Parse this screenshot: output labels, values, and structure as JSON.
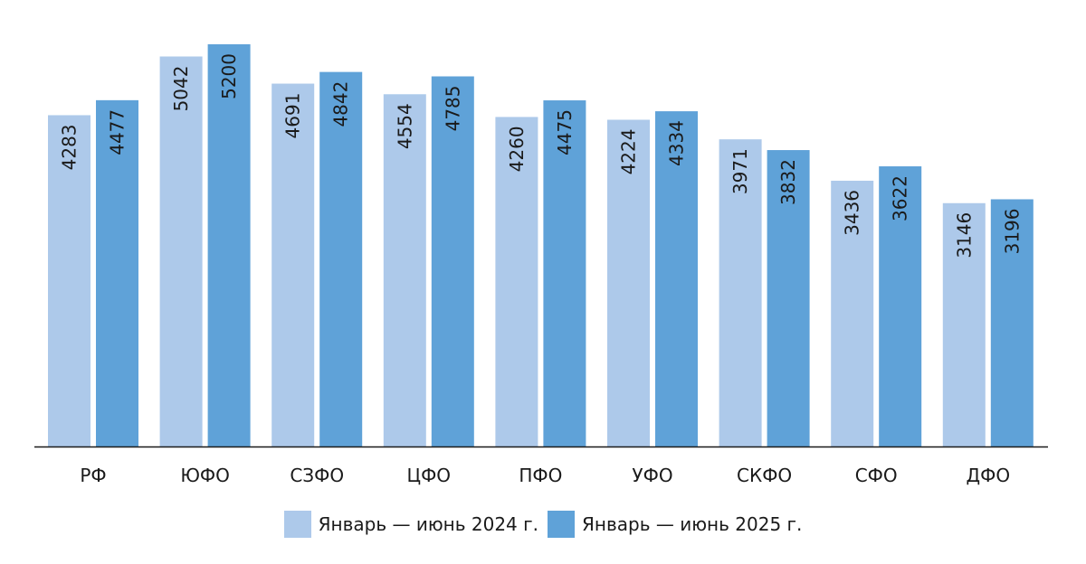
{
  "chart_data": {
    "type": "bar",
    "categories": [
      "РФ",
      "ЮФО",
      "СЗФО",
      "ЦФО",
      "ПФО",
      "УФО",
      "СКФО",
      "СФО",
      "ДФО"
    ],
    "series": [
      {
        "name": "Январь — июнь 2024 г.",
        "color": "#adc9ea",
        "values": [
          4283,
          5042,
          4691,
          4554,
          4260,
          4224,
          3971,
          3436,
          3146
        ]
      },
      {
        "name": "Январь — июнь 2025 г.",
        "color": "#5fa2d8",
        "values": [
          4477,
          5200,
          4842,
          4785,
          4475,
          4334,
          3832,
          3622,
          3196
        ]
      }
    ],
    "ylim": [
      0,
      5340
    ],
    "grid": false,
    "legend_position": "bottom-center",
    "data_labels": "rotated-inside-top"
  }
}
